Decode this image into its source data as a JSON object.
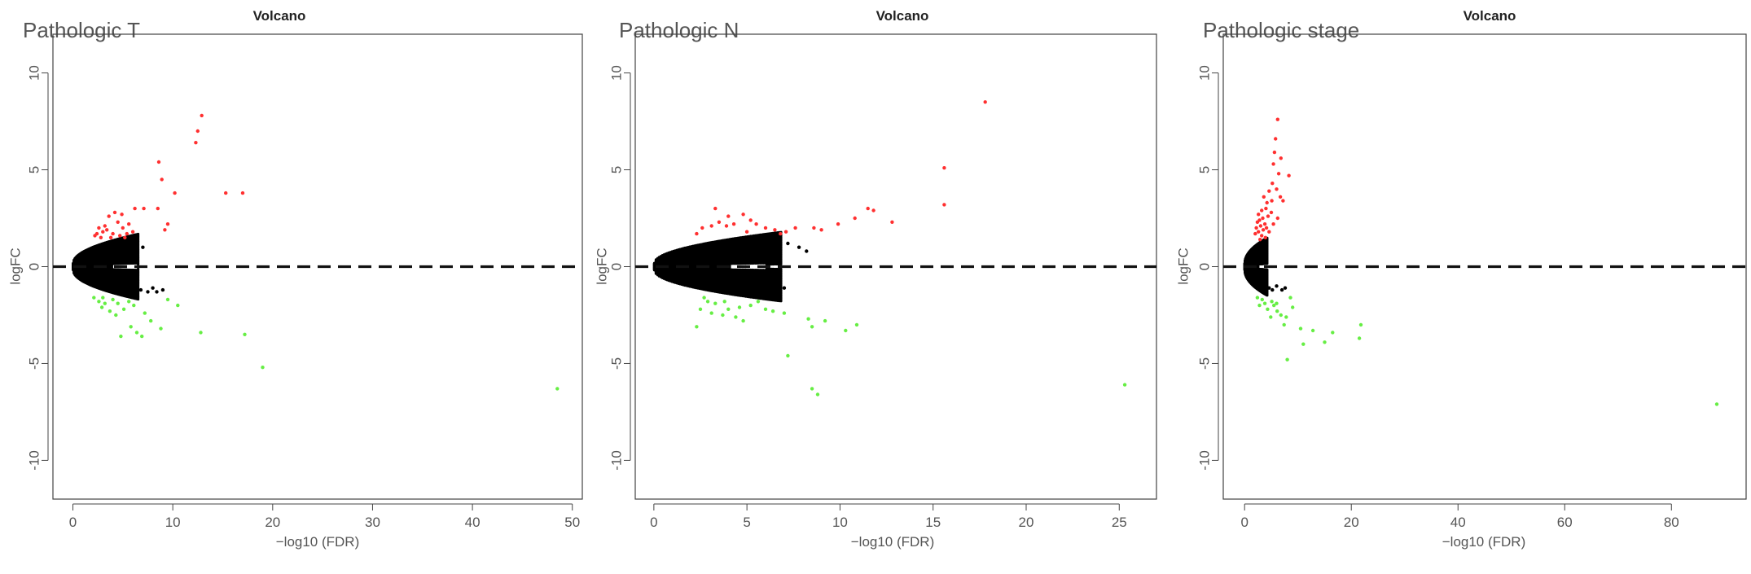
{
  "colors": {
    "up": "#ff3030",
    "down": "#66ee44",
    "ns": "#000000",
    "axis": "#444444",
    "label": "#555555"
  },
  "chart_data": [
    {
      "type": "scatter",
      "panel_label": "Pathologic T",
      "title": "Volcano",
      "xlabel": "−log10 (FDR)",
      "ylabel": "logFC",
      "xlim": [
        -2,
        51
      ],
      "ylim": [
        -12,
        12
      ],
      "xticks": [
        0,
        10,
        20,
        30,
        40,
        50
      ],
      "yticks": [
        -10,
        -5,
        0,
        5,
        10
      ],
      "hline": 0,
      "grid": false,
      "legend": "none",
      "series": [
        {
          "group": "up",
          "points": [
            [
              12.9,
              7.8
            ],
            [
              12.5,
              7.0
            ],
            [
              12.3,
              6.4
            ],
            [
              8.6,
              5.4
            ],
            [
              8.9,
              4.5
            ],
            [
              10.2,
              3.8
            ],
            [
              15.3,
              3.8
            ],
            [
              17.0,
              3.8
            ],
            [
              6.2,
              3.0
            ],
            [
              7.1,
              3.0
            ],
            [
              8.5,
              3.0
            ],
            [
              4.9,
              2.7
            ],
            [
              3.6,
              2.6
            ],
            [
              4.2,
              2.8
            ],
            [
              5.6,
              2.2
            ],
            [
              5.0,
              2.0
            ],
            [
              9.5,
              2.2
            ],
            [
              2.6,
              2.0
            ],
            [
              3.0,
              1.8
            ],
            [
              3.4,
              1.9
            ],
            [
              4.0,
              1.7
            ],
            [
              4.7,
              1.6
            ],
            [
              5.4,
              1.7
            ],
            [
              2.2,
              1.6
            ],
            [
              2.8,
              1.5
            ],
            [
              3.2,
              2.1
            ],
            [
              4.5,
              2.3
            ],
            [
              6.0,
              1.8
            ],
            [
              9.2,
              1.9
            ],
            [
              2.4,
              1.7
            ],
            [
              3.8,
              1.5
            ],
            [
              5.2,
              1.5
            ]
          ]
        },
        {
          "group": "down",
          "points": [
            [
              48.5,
              -6.3
            ],
            [
              19.0,
              -5.2
            ],
            [
              17.2,
              -3.5
            ],
            [
              12.8,
              -3.4
            ],
            [
              10.5,
              -2.0
            ],
            [
              8.8,
              -3.2
            ],
            [
              7.8,
              -2.8
            ],
            [
              6.9,
              -3.6
            ],
            [
              6.4,
              -3.4
            ],
            [
              5.8,
              -3.1
            ],
            [
              4.8,
              -3.6
            ],
            [
              4.3,
              -2.5
            ],
            [
              3.7,
              -2.3
            ],
            [
              3.2,
              -1.9
            ],
            [
              2.6,
              -1.8
            ],
            [
              2.1,
              -1.6
            ],
            [
              4.0,
              -1.7
            ],
            [
              5.1,
              -2.2
            ],
            [
              5.6,
              -1.8
            ],
            [
              6.1,
              -2.0
            ],
            [
              3.0,
              -1.6
            ],
            [
              2.9,
              -2.1
            ],
            [
              4.5,
              -1.9
            ],
            [
              7.2,
              -2.4
            ],
            [
              9.5,
              -1.7
            ]
          ]
        },
        {
          "group": "ns",
          "points": [
            [
              6.8,
              -1.2
            ],
            [
              7.5,
              -1.3
            ],
            [
              8.0,
              -1.1
            ],
            [
              8.4,
              -1.3
            ],
            [
              9.0,
              -1.2
            ],
            [
              5.6,
              1.4
            ],
            [
              6.4,
              1.2
            ],
            [
              7.0,
              1.0
            ]
          ]
        }
      ]
    },
    {
      "type": "scatter",
      "panel_label": "Pathologic N",
      "title": "Volcano",
      "xlabel": "−log10 (FDR)",
      "ylabel": "logFC",
      "xlim": [
        -1,
        27
      ],
      "ylim": [
        -12,
        12
      ],
      "xticks": [
        0,
        5,
        10,
        15,
        20,
        25
      ],
      "yticks": [
        -10,
        -5,
        0,
        5,
        10
      ],
      "hline": 0,
      "grid": false,
      "legend": "none",
      "series": [
        {
          "group": "up",
          "points": [
            [
              17.8,
              8.5
            ],
            [
              15.6,
              5.1
            ],
            [
              15.6,
              3.2
            ],
            [
              11.8,
              2.9
            ],
            [
              11.5,
              3.0
            ],
            [
              12.8,
              2.3
            ],
            [
              10.8,
              2.5
            ],
            [
              9.9,
              2.2
            ],
            [
              8.6,
              2.0
            ],
            [
              9.0,
              1.9
            ],
            [
              7.6,
              2.0
            ],
            [
              7.1,
              1.8
            ],
            [
              6.5,
              1.9
            ],
            [
              6.0,
              2.0
            ],
            [
              5.5,
              2.2
            ],
            [
              5.2,
              2.4
            ],
            [
              4.8,
              2.7
            ],
            [
              4.3,
              2.2
            ],
            [
              3.9,
              2.1
            ],
            [
              3.5,
              2.3
            ],
            [
              3.1,
              2.1
            ],
            [
              2.6,
              2.0
            ],
            [
              2.3,
              1.7
            ],
            [
              4.0,
              2.6
            ],
            [
              3.3,
              3.0
            ],
            [
              5.0,
              1.8
            ],
            [
              6.8,
              1.7
            ]
          ]
        },
        {
          "group": "down",
          "points": [
            [
              25.3,
              -6.1
            ],
            [
              8.5,
              -6.3
            ],
            [
              8.8,
              -6.6
            ],
            [
              7.2,
              -4.6
            ],
            [
              10.3,
              -3.3
            ],
            [
              10.9,
              -3.0
            ],
            [
              9.2,
              -2.8
            ],
            [
              8.5,
              -3.1
            ],
            [
              8.3,
              -2.7
            ],
            [
              7.0,
              -2.4
            ],
            [
              6.4,
              -2.3
            ],
            [
              6.0,
              -2.2
            ],
            [
              4.8,
              -2.8
            ],
            [
              4.4,
              -2.6
            ],
            [
              4.0,
              -2.2
            ],
            [
              3.7,
              -2.5
            ],
            [
              3.3,
              -1.9
            ],
            [
              2.9,
              -1.8
            ],
            [
              2.5,
              -2.2
            ],
            [
              2.3,
              -3.1
            ],
            [
              3.1,
              -2.4
            ],
            [
              3.8,
              -1.8
            ],
            [
              4.6,
              -2.1
            ],
            [
              5.2,
              -2.0
            ],
            [
              5.6,
              -1.8
            ],
            [
              2.7,
              -1.6
            ]
          ]
        },
        {
          "group": "ns",
          "points": [
            [
              7.2,
              1.2
            ],
            [
              7.8,
              1.0
            ],
            [
              8.2,
              0.8
            ],
            [
              6.6,
              -1.0
            ],
            [
              7.0,
              -1.1
            ],
            [
              6.2,
              -1.3
            ],
            [
              5.8,
              1.4
            ]
          ]
        }
      ]
    },
    {
      "type": "scatter",
      "panel_label": "Pathologic stage",
      "title": "Volcano",
      "xlabel": "−log10 (FDR)",
      "ylabel": "logFC",
      "xlim": [
        -4,
        94
      ],
      "ylim": [
        -12,
        12
      ],
      "xticks": [
        0,
        20,
        40,
        60,
        80
      ],
      "yticks": [
        -10,
        -5,
        0,
        5,
        10
      ],
      "hline": 0,
      "grid": false,
      "legend": "none",
      "series": [
        {
          "group": "up",
          "points": [
            [
              6.2,
              7.6
            ],
            [
              5.8,
              6.6
            ],
            [
              5.6,
              5.9
            ],
            [
              5.4,
              5.3
            ],
            [
              6.8,
              5.6
            ],
            [
              6.4,
              4.8
            ],
            [
              8.3,
              4.7
            ],
            [
              5.2,
              4.3
            ],
            [
              6.0,
              4.0
            ],
            [
              4.6,
              3.9
            ],
            [
              3.6,
              3.6
            ],
            [
              5.1,
              3.4
            ],
            [
              4.2,
              3.3
            ],
            [
              6.7,
              3.6
            ],
            [
              7.2,
              3.4
            ],
            [
              4.0,
              3.0
            ],
            [
              3.2,
              2.9
            ],
            [
              2.6,
              2.7
            ],
            [
              2.8,
              2.4
            ],
            [
              3.4,
              2.5
            ],
            [
              3.8,
              2.2
            ],
            [
              4.4,
              2.6
            ],
            [
              5.0,
              2.8
            ],
            [
              2.2,
              2.0
            ],
            [
              2.6,
              1.8
            ],
            [
              3.0,
              2.1
            ],
            [
              3.5,
              1.9
            ],
            [
              4.1,
              2.0
            ],
            [
              2.4,
              2.3
            ],
            [
              3.2,
              1.6
            ],
            [
              2.0,
              1.7
            ],
            [
              4.6,
              1.8
            ],
            [
              5.4,
              2.2
            ],
            [
              3.9,
              1.5
            ],
            [
              2.9,
              1.4
            ],
            [
              6.2,
              2.5
            ]
          ]
        },
        {
          "group": "down",
          "points": [
            [
              88.5,
              -7.1
            ],
            [
              21.5,
              -3.7
            ],
            [
              21.8,
              -3.0
            ],
            [
              16.5,
              -3.4
            ],
            [
              15.0,
              -3.9
            ],
            [
              12.8,
              -3.3
            ],
            [
              11.0,
              -4.0
            ],
            [
              10.5,
              -3.2
            ],
            [
              8.0,
              -4.8
            ],
            [
              7.4,
              -3.0
            ],
            [
              6.8,
              -2.5
            ],
            [
              6.1,
              -2.3
            ],
            [
              5.5,
              -2.0
            ],
            [
              4.9,
              -2.6
            ],
            [
              4.3,
              -2.2
            ],
            [
              3.8,
              -1.9
            ],
            [
              3.3,
              -1.7
            ],
            [
              2.8,
              -2.0
            ],
            [
              2.4,
              -1.6
            ],
            [
              5.1,
              -1.8
            ],
            [
              6.0,
              -1.9
            ],
            [
              7.8,
              -2.6
            ],
            [
              9.0,
              -2.1
            ],
            [
              8.6,
              -1.6
            ]
          ]
        },
        {
          "group": "ns",
          "points": [
            [
              4.6,
              -1.1
            ],
            [
              5.2,
              -1.2
            ],
            [
              6.0,
              -1.0
            ],
            [
              7.0,
              -1.2
            ],
            [
              7.6,
              -1.1
            ],
            [
              4.0,
              1.2
            ]
          ]
        }
      ]
    }
  ]
}
